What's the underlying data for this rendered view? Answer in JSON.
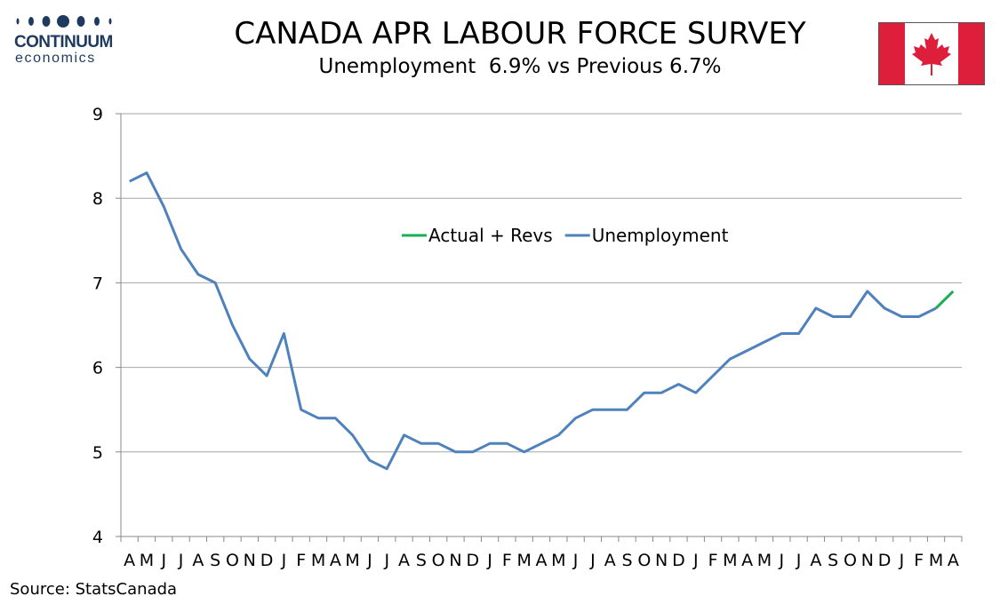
{
  "header": {
    "logo_word": "CONTINUUM",
    "logo_sub": "economics",
    "title": "CANADA APR LABOUR FORCE SURVEY",
    "subtitle": "Unemployment  6.9% vs Previous 6.7%"
  },
  "footer": {
    "source": "Source: StatsCanada"
  },
  "colors": {
    "unemployment": "#4f81bd",
    "actual_revs": "#1aaf54",
    "grid": "#a6a6a6",
    "flag_red": "#de1f3c",
    "logo": "#1e3a5f"
  },
  "chart_data": {
    "type": "line",
    "title": "CANADA APR LABOUR FORCE SURVEY",
    "subtitle": "Unemployment  6.9% vs Previous 6.7%",
    "xlabel": "",
    "ylabel": "",
    "ylim": [
      4,
      9
    ],
    "yticks": [
      "4",
      "5",
      "6",
      "7",
      "8",
      "9"
    ],
    "grid": true,
    "legend_position": "center",
    "categories": [
      "A",
      "M",
      "J",
      "J",
      "A",
      "S",
      "O",
      "N",
      "D",
      "J",
      "F",
      "M",
      "A",
      "M",
      "J",
      "J",
      "A",
      "S",
      "O",
      "N",
      "D",
      "J",
      "F",
      "M",
      "A",
      "M",
      "J",
      "J",
      "A",
      "S",
      "O",
      "N",
      "D",
      "J",
      "F",
      "M",
      "A",
      "M",
      "J",
      "J",
      "A",
      "S",
      "O",
      "N",
      "D",
      "J",
      "F",
      "M",
      "A"
    ],
    "series": [
      {
        "name": "Actual + Revs",
        "color": "#1aaf54",
        "values": [
          null,
          null,
          null,
          null,
          null,
          null,
          null,
          null,
          null,
          null,
          null,
          null,
          null,
          null,
          null,
          null,
          null,
          null,
          null,
          null,
          null,
          null,
          null,
          null,
          null,
          null,
          null,
          null,
          null,
          null,
          null,
          null,
          null,
          null,
          null,
          null,
          null,
          null,
          null,
          null,
          null,
          null,
          null,
          null,
          null,
          null,
          null,
          6.7,
          6.9
        ]
      },
      {
        "name": "Unemployment",
        "color": "#4f81bd",
        "values": [
          8.2,
          8.3,
          7.9,
          7.4,
          7.1,
          7.0,
          6.5,
          6.1,
          5.9,
          6.4,
          5.5,
          5.4,
          5.4,
          5.2,
          4.9,
          4.8,
          5.2,
          5.1,
          5.1,
          5.0,
          5.0,
          5.1,
          5.1,
          5.0,
          5.1,
          5.2,
          5.4,
          5.5,
          5.5,
          5.5,
          5.7,
          5.7,
          5.8,
          5.7,
          5.9,
          6.1,
          6.2,
          6.3,
          6.4,
          6.4,
          6.7,
          6.6,
          6.6,
          6.9,
          6.7,
          6.6,
          6.6,
          6.7,
          null
        ]
      }
    ]
  }
}
